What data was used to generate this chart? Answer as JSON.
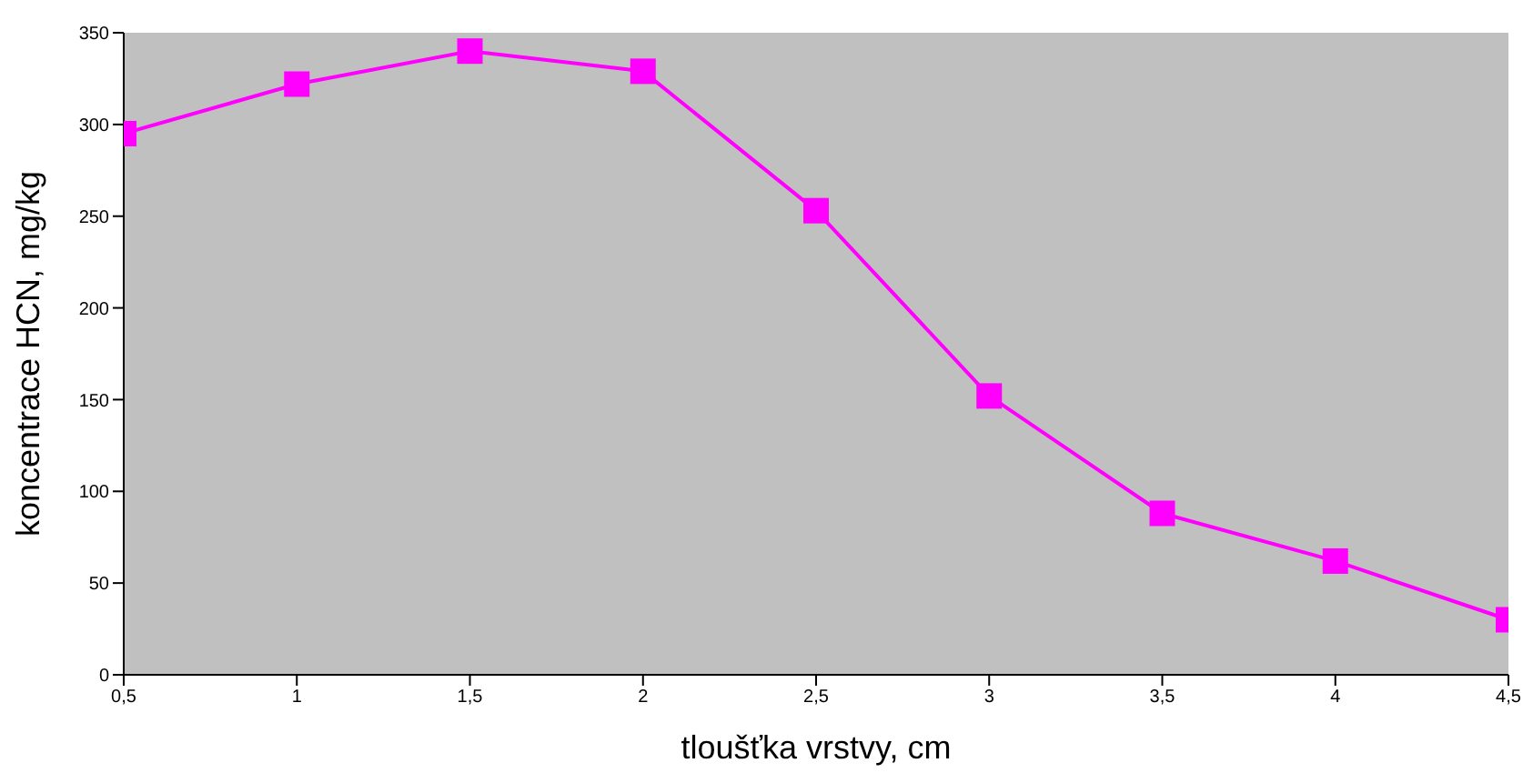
{
  "chart_data": {
    "type": "line",
    "xlabel": "tloušťka vrstvy, cm",
    "ylabel": "koncentrace HCN, mg/kg",
    "x": [
      0.5,
      1,
      1.5,
      2,
      2.5,
      3,
      3.5,
      4,
      4.5
    ],
    "series": [
      {
        "color": "#ff00ff",
        "values": [
          295,
          322,
          340,
          329,
          253,
          152,
          88,
          62,
          30
        ]
      }
    ],
    "xlim": [
      0.5,
      4.5
    ],
    "xticks": [
      {
        "value": 0.5,
        "label": "0,5"
      },
      1,
      {
        "value": 1.5,
        "label": "1,5"
      },
      2,
      {
        "value": 2.5,
        "label": "2,5"
      },
      3,
      {
        "value": 3.5,
        "label": "3,5"
      },
      4,
      {
        "value": 4.5,
        "label": "4,5"
      }
    ],
    "ylim": [
      0,
      350
    ],
    "yticks": [
      0,
      50,
      100,
      150,
      200,
      250,
      300,
      350
    ],
    "grid": false,
    "legend": false,
    "marker": "square",
    "line_style": "solid"
  }
}
